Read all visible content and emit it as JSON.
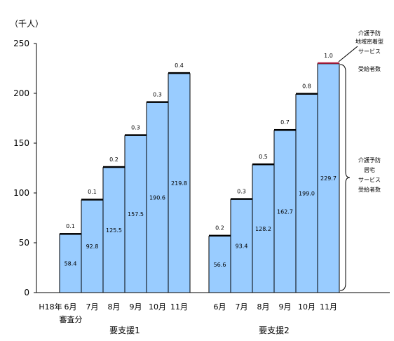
{
  "chart_data": {
    "type": "bar",
    "stacked": true,
    "unit_label": "（千人）",
    "ylim": [
      0,
      250
    ],
    "yticks": [
      0,
      50,
      100,
      150,
      200,
      250
    ],
    "grid": false,
    "groups": [
      {
        "name": "要支援1",
        "categories": [
          "6月",
          "7月",
          "8月",
          "9月",
          "10月",
          "11月"
        ],
        "main_values": [
          58.4,
          92.8,
          125.5,
          157.5,
          190.6,
          219.8
        ],
        "main_labels": [
          "58.4",
          "92.8",
          "125.5",
          "157.5",
          "190.6",
          "219.8"
        ],
        "top_values": [
          0.1,
          0.1,
          0.2,
          0.3,
          0.3,
          0.4
        ],
        "top_labels": [
          "0.1",
          "0.1",
          "0.2",
          "0.3",
          "0.3",
          "0.4"
        ]
      },
      {
        "name": "要支援2",
        "categories": [
          "6月",
          "7月",
          "8月",
          "9月",
          "10月",
          "11月"
        ],
        "main_values": [
          56.6,
          93.4,
          128.2,
          162.7,
          199.0,
          229.7
        ],
        "main_labels": [
          "56.6",
          "93.4",
          "128.2",
          "162.7",
          "199.0",
          "229.7"
        ],
        "top_values": [
          0.2,
          0.3,
          0.5,
          0.7,
          0.8,
          1.0
        ],
        "top_labels": [
          "0.2",
          "0.3",
          "0.5",
          "0.7",
          "0.8",
          "1.0"
        ]
      }
    ],
    "leading_label": [
      "H18年",
      "審査分"
    ],
    "annotations": {
      "top": [
        "介護予防",
        "地域密着型",
        "サービス",
        "",
        "受給者数"
      ],
      "main": [
        "介護予防",
        "居宅",
        "サービス",
        "受給者数"
      ]
    }
  }
}
